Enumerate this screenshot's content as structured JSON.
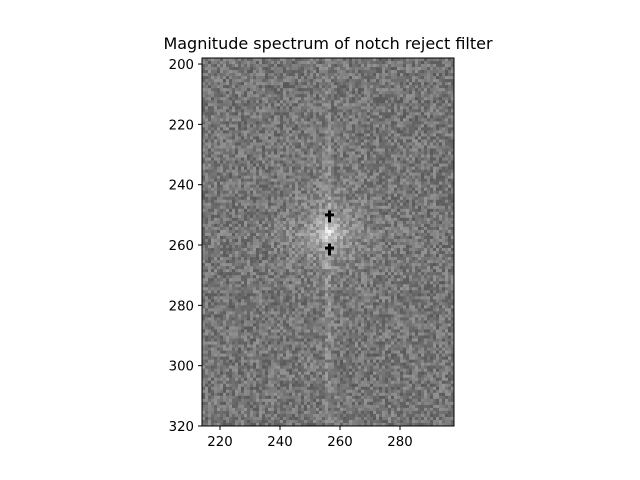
{
  "chart_data": {
    "type": "heatmap",
    "title": "Magnitude spectrum of notch reject filter",
    "xlabel": "",
    "ylabel": "",
    "xlim": [
      214,
      298
    ],
    "ylim": [
      320,
      198
    ],
    "x_ticks": [
      220,
      240,
      260,
      280
    ],
    "y_ticks": [
      200,
      220,
      240,
      260,
      280,
      300,
      320
    ],
    "colormap": "gray",
    "grid": false,
    "spectrum_center": {
      "x": 256,
      "y": 256
    },
    "notch_points": [
      {
        "x": 256,
        "y": 250
      },
      {
        "x": 256,
        "y": 261
      }
    ]
  }
}
